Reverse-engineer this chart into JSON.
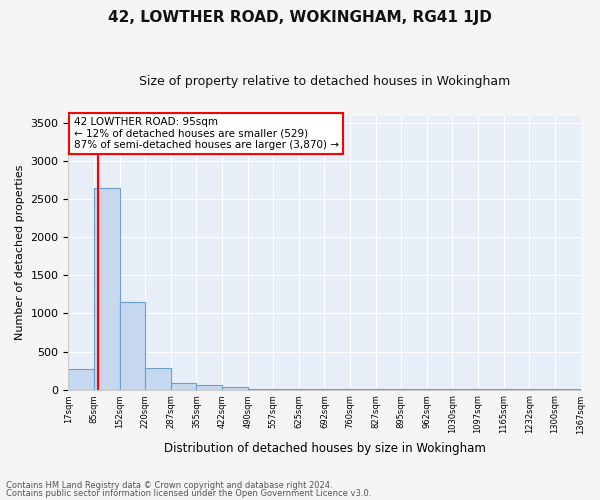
{
  "title1": "42, LOWTHER ROAD, WOKINGHAM, RG41 1JD",
  "title2": "Size of property relative to detached houses in Wokingham",
  "xlabel": "Distribution of detached houses by size in Wokingham",
  "ylabel": "Number of detached properties",
  "bar_color": "#c5d8ef",
  "bar_edge_color": "#6aa0cb",
  "bar_heights": [
    270,
    2650,
    1150,
    280,
    90,
    55,
    30,
    10,
    5,
    3,
    2,
    1,
    1,
    1,
    1,
    1,
    1,
    1,
    1,
    1
  ],
  "x_labels": [
    "17sqm",
    "85sqm",
    "152sqm",
    "220sqm",
    "287sqm",
    "355sqm",
    "422sqm",
    "490sqm",
    "557sqm",
    "625sqm",
    "692sqm",
    "760sqm",
    "827sqm",
    "895sqm",
    "962sqm",
    "1030sqm",
    "1097sqm",
    "1165sqm",
    "1232sqm",
    "1300sqm",
    "1367sqm"
  ],
  "ylim": [
    0,
    3600
  ],
  "yticks": [
    0,
    500,
    1000,
    1500,
    2000,
    2500,
    3000,
    3500
  ],
  "annotation_line1": "42 LOWTHER ROAD: 95sqm",
  "annotation_line2": "← 12% of detached houses are smaller (529)",
  "annotation_line3": "87% of semi-detached houses are larger (3,870) →",
  "background_color": "#e8eef8",
  "grid_color": "#ffffff",
  "fig_facecolor": "#f5f5f5",
  "footnote1": "Contains HM Land Registry data © Crown copyright and database right 2024.",
  "footnote2": "Contains public sector information licensed under the Open Government Licence v3.0."
}
